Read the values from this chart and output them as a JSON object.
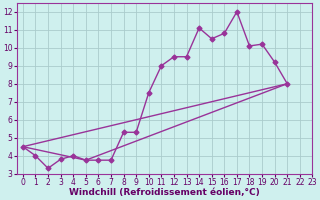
{
  "xlabel": "Windchill (Refroidissement éolien,°C)",
  "background_color": "#cff0ee",
  "grid_color": "#aacccc",
  "line_color": "#993399",
  "x_data": [
    0,
    1,
    2,
    3,
    4,
    5,
    6,
    7,
    8,
    9,
    10,
    11,
    12,
    13,
    14,
    15,
    16,
    17,
    18,
    19,
    20,
    21
  ],
  "y_main": [
    4.5,
    4.0,
    3.3,
    3.8,
    4.0,
    3.75,
    3.75,
    3.75,
    5.3,
    5.3,
    7.5,
    9.0,
    9.5,
    9.5,
    11.1,
    10.5,
    10.8,
    12.0,
    10.1,
    10.2,
    9.2,
    8.0
  ],
  "reg_line_x": [
    0,
    21
  ],
  "reg_line_y": [
    4.5,
    8.0
  ],
  "env_line_x": [
    0,
    5,
    21
  ],
  "env_line_y": [
    4.5,
    3.75,
    8.0
  ],
  "ylim": [
    3.0,
    12.5
  ],
  "xlim": [
    -0.5,
    23
  ],
  "yticks": [
    3,
    4,
    5,
    6,
    7,
    8,
    9,
    10,
    11,
    12
  ],
  "xticks": [
    0,
    1,
    2,
    3,
    4,
    5,
    6,
    7,
    8,
    9,
    10,
    11,
    12,
    13,
    14,
    15,
    16,
    17,
    18,
    19,
    20,
    21,
    22,
    23
  ],
  "marker": "D",
  "markersize": 2.5,
  "linewidth": 1.0,
  "tick_fontsize": 5.5,
  "label_fontsize": 6.5
}
